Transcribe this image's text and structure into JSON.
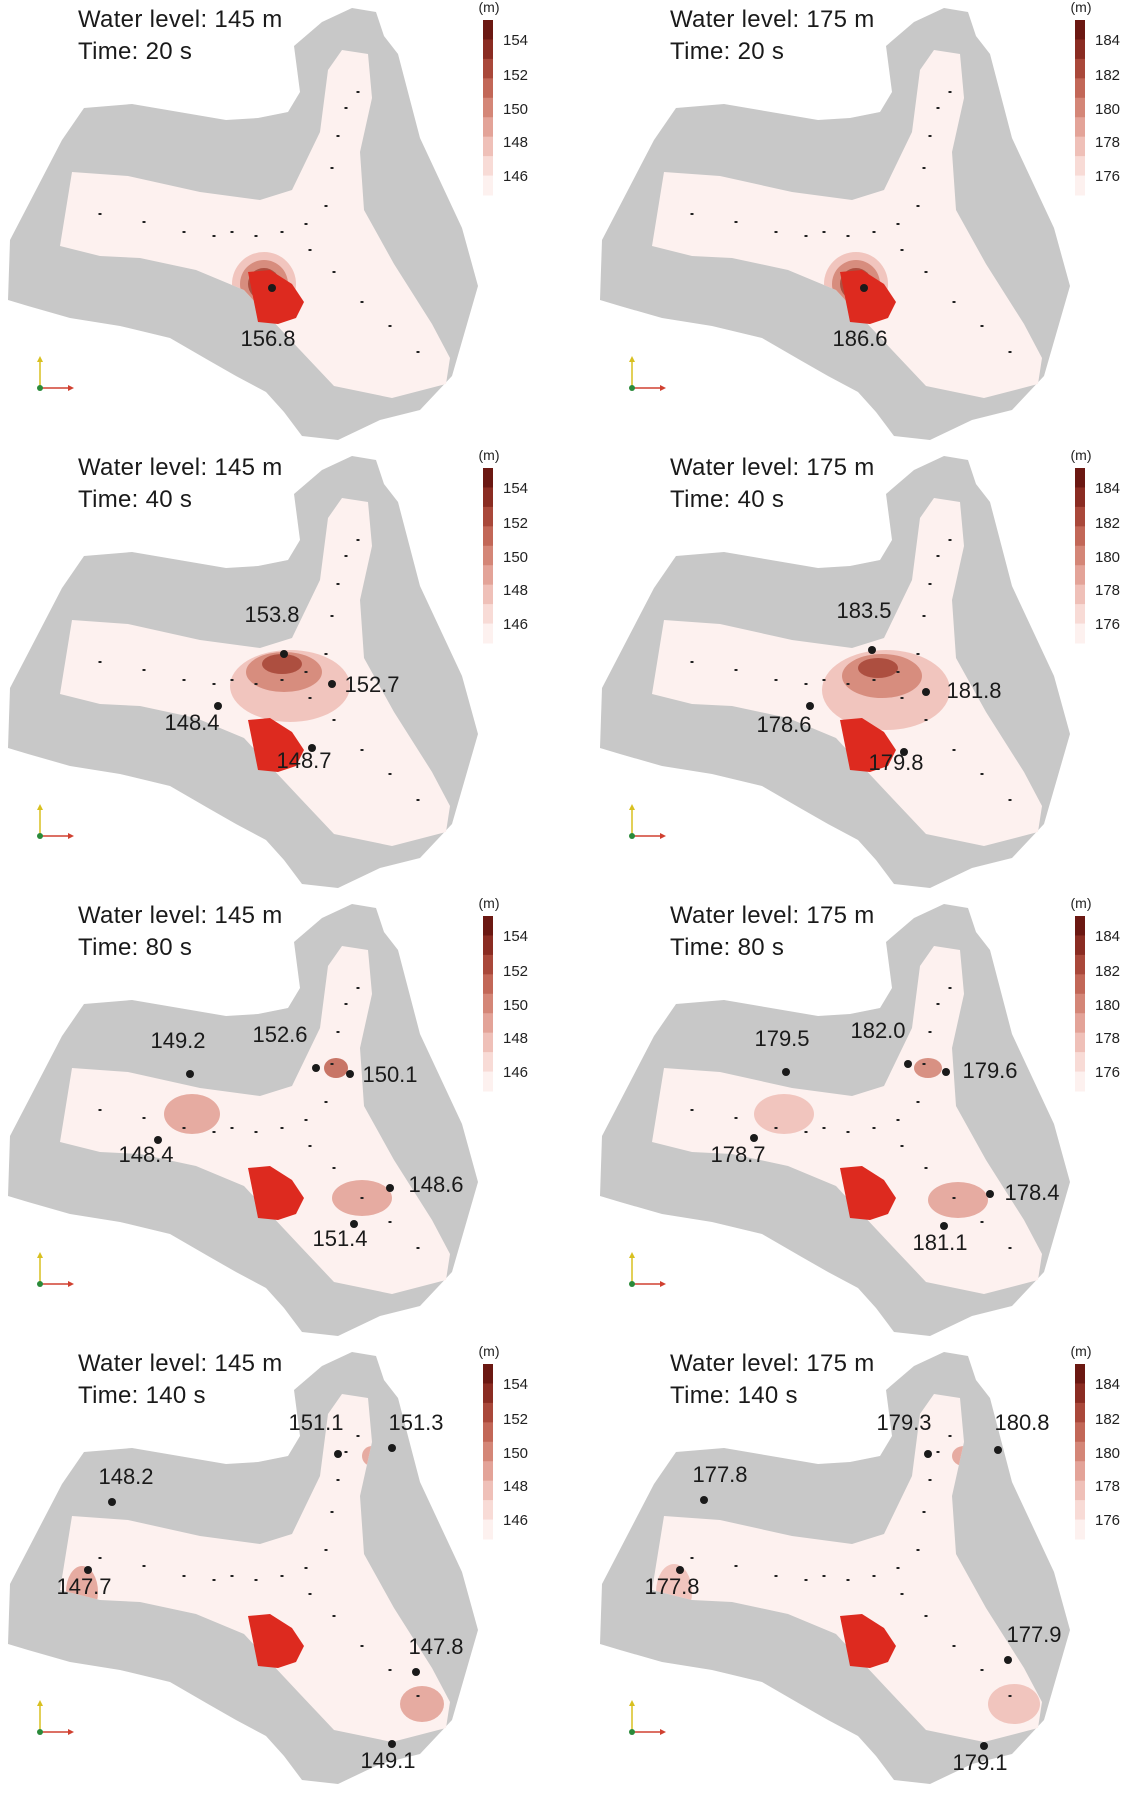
{
  "colorbar_unit": "(m)",
  "colors": {
    "terrain": "#c8c8c8",
    "water": "#fdf1ef",
    "landslide": "#dd2a1f",
    "marker": "#1a1a1a",
    "scale": [
      "#fdf1ef",
      "#f8dbd6",
      "#efc0b8",
      "#e3a398",
      "#d48677",
      "#c26757",
      "#a9483a",
      "#8a2c22",
      "#6b1812"
    ]
  },
  "panels": [
    {
      "water_level_text": "Water level: 145 m",
      "time_text": "Time: 20 s",
      "ticks": [
        "154",
        "152",
        "150",
        "148",
        "146"
      ],
      "annotations": [
        {
          "text": "156.8"
        }
      ],
      "blobs": [
        {
          "level": 2,
          "rx": 0.32,
          "ry": 0.32
        },
        {
          "level": 4,
          "rx": 0.24,
          "ry": 0.24
        },
        {
          "level": 6,
          "rx": 0.16,
          "ry": 0.16
        },
        {
          "level": 8,
          "rx": 0.08,
          "ry": 0.08
        }
      ]
    },
    {
      "water_level_text": "Water level: 175 m",
      "time_text": "Time: 20 s",
      "ticks": [
        "184",
        "182",
        "180",
        "178",
        "176"
      ],
      "annotations": [
        {
          "text": "186.6"
        }
      ],
      "blobs": [
        {
          "level": 2,
          "rx": 0.32,
          "ry": 0.32
        },
        {
          "level": 4,
          "rx": 0.24,
          "ry": 0.24
        },
        {
          "level": 6,
          "rx": 0.16,
          "ry": 0.16
        },
        {
          "level": 8,
          "rx": 0.08,
          "ry": 0.08
        }
      ]
    },
    {
      "water_level_text": "Water level: 145 m",
      "time_text": "Time: 40 s",
      "ticks": [
        "154",
        "152",
        "150",
        "148",
        "146"
      ],
      "annotations": [
        {
          "text": "153.8"
        },
        {
          "text": "152.7"
        },
        {
          "text": "148.4"
        },
        {
          "text": "148.7"
        }
      ],
      "blobs": [
        {
          "level": 2,
          "rx": 0.6,
          "ry": 0.36
        },
        {
          "level": 4,
          "rx": 0.38,
          "ry": 0.2
        },
        {
          "level": 6,
          "rx": 0.2,
          "ry": 0.1
        }
      ]
    },
    {
      "water_level_text": "Water level: 175 m",
      "time_text": "Time: 40 s",
      "ticks": [
        "184",
        "182",
        "180",
        "178",
        "176"
      ],
      "annotations": [
        {
          "text": "183.5"
        },
        {
          "text": "181.8"
        },
        {
          "text": "178.6"
        },
        {
          "text": "179.8"
        }
      ],
      "blobs": [
        {
          "level": 2,
          "rx": 0.64,
          "ry": 0.4
        },
        {
          "level": 4,
          "rx": 0.4,
          "ry": 0.22
        },
        {
          "level": 6,
          "rx": 0.2,
          "ry": 0.1
        }
      ]
    },
    {
      "water_level_text": "Water level: 145 m",
      "time_text": "Time: 80 s",
      "ticks": [
        "154",
        "152",
        "150",
        "148",
        "146"
      ],
      "annotations": [
        {
          "text": "152.6"
        },
        {
          "text": "150.1"
        },
        {
          "text": "149.2"
        },
        {
          "text": "148.4"
        },
        {
          "text": "148.6"
        },
        {
          "text": "151.4"
        }
      ],
      "blobs": [
        {
          "level": 5,
          "rx": 0.12,
          "ry": 0.1
        },
        {
          "level": 3,
          "rx": 0.28,
          "ry": 0.2
        },
        {
          "level": 3,
          "rx": 0.3,
          "ry": 0.18
        }
      ]
    },
    {
      "water_level_text": "Water level: 175 m",
      "time_text": "Time: 80 s",
      "ticks": [
        "184",
        "182",
        "180",
        "178",
        "176"
      ],
      "annotations": [
        {
          "text": "182.0"
        },
        {
          "text": "179.6"
        },
        {
          "text": "179.5"
        },
        {
          "text": "178.7"
        },
        {
          "text": "178.4"
        },
        {
          "text": "181.1"
        }
      ],
      "blobs": [
        {
          "level": 4,
          "rx": 0.14,
          "ry": 0.1
        },
        {
          "level": 2,
          "rx": 0.3,
          "ry": 0.2
        },
        {
          "level": 3,
          "rx": 0.3,
          "ry": 0.18
        }
      ]
    },
    {
      "water_level_text": "Water level: 145 m",
      "time_text": "Time: 140 s",
      "ticks": [
        "154",
        "152",
        "150",
        "148",
        "146"
      ],
      "annotations": [
        {
          "text": "151.1"
        },
        {
          "text": "151.3"
        },
        {
          "text": "148.2"
        },
        {
          "text": "147.7"
        },
        {
          "text": "147.8"
        },
        {
          "text": "149.1"
        }
      ],
      "blobs": [
        {
          "level": 3,
          "rx": 0.1,
          "ry": 0.1
        },
        {
          "level": 3,
          "rx": 0.16,
          "ry": 0.26
        },
        {
          "level": 3,
          "rx": 0.22,
          "ry": 0.18
        }
      ]
    },
    {
      "water_level_text": "Water level: 175 m",
      "time_text": "Time: 140 s",
      "ticks": [
        "184",
        "182",
        "180",
        "178",
        "176"
      ],
      "annotations": [
        {
          "text": "179.3"
        },
        {
          "text": "180.8"
        },
        {
          "text": "177.8"
        },
        {
          "text": "177.8"
        },
        {
          "text": "177.9"
        },
        {
          "text": "179.1"
        }
      ],
      "blobs": [
        {
          "level": 3,
          "rx": 0.12,
          "ry": 0.1
        },
        {
          "level": 2,
          "rx": 0.18,
          "ry": 0.28
        },
        {
          "level": 2,
          "rx": 0.26,
          "ry": 0.2
        }
      ]
    }
  ]
}
